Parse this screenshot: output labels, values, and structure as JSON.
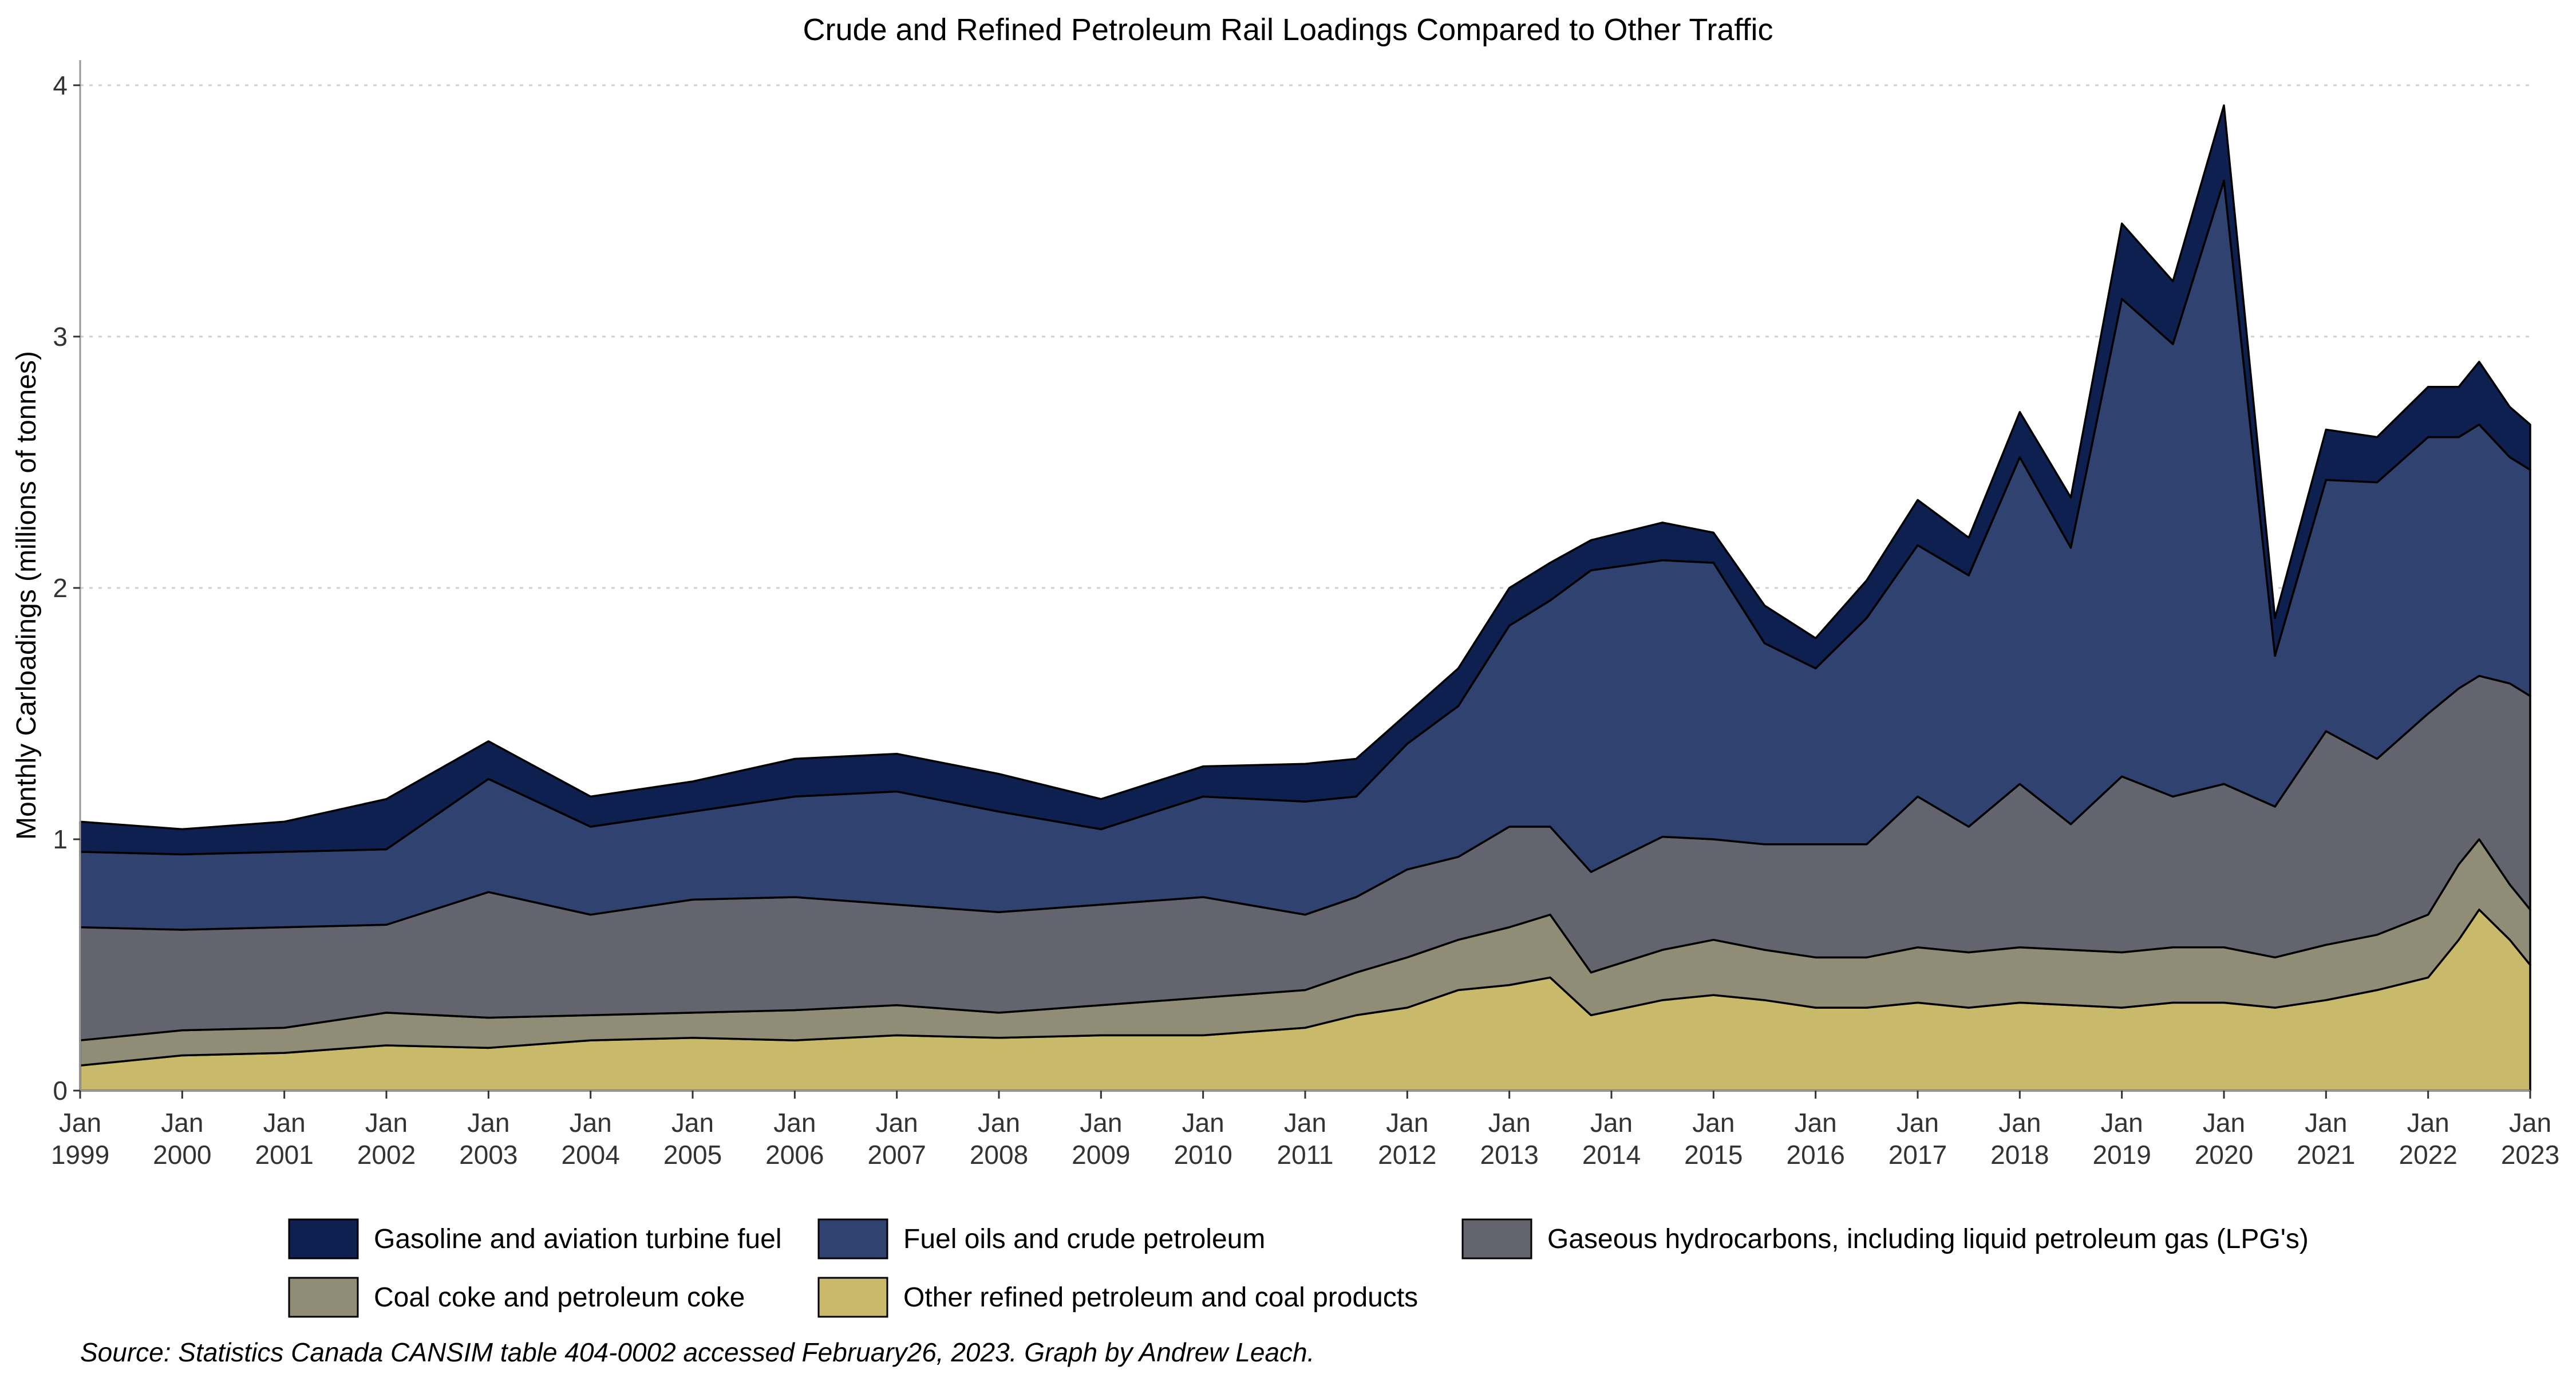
{
  "chart_data": {
    "type": "area",
    "stacked": true,
    "title": "Crude and Refined Petroleum Rail Loadings Compared to Other Traffic",
    "xlabel": "",
    "ylabel": "Monthly Carloadings (millions of tonnes)",
    "ylim": [
      0,
      4.1
    ],
    "yticks": [
      0,
      1,
      2,
      3,
      4
    ],
    "grid": "horizontal-dotted",
    "legend_position": "bottom",
    "x_ticks": [
      {
        "year": 1999,
        "label_top": "Jan",
        "label_bottom": "1999"
      },
      {
        "year": 2000,
        "label_top": "Jan",
        "label_bottom": "2000"
      },
      {
        "year": 2001,
        "label_top": "Jan",
        "label_bottom": "2001"
      },
      {
        "year": 2002,
        "label_top": "Jan",
        "label_bottom": "2002"
      },
      {
        "year": 2003,
        "label_top": "Jan",
        "label_bottom": "2003"
      },
      {
        "year": 2004,
        "label_top": "Jan",
        "label_bottom": "2004"
      },
      {
        "year": 2005,
        "label_top": "Jan",
        "label_bottom": "2005"
      },
      {
        "year": 2006,
        "label_top": "Jan",
        "label_bottom": "2006"
      },
      {
        "year": 2007,
        "label_top": "Jan",
        "label_bottom": "2007"
      },
      {
        "year": 2008,
        "label_top": "Jan",
        "label_bottom": "2008"
      },
      {
        "year": 2009,
        "label_top": "Jan",
        "label_bottom": "2009"
      },
      {
        "year": 2010,
        "label_top": "Jan",
        "label_bottom": "2010"
      },
      {
        "year": 2011,
        "label_top": "Jan",
        "label_bottom": "2011"
      },
      {
        "year": 2012,
        "label_top": "Jan",
        "label_bottom": "2012"
      },
      {
        "year": 2013,
        "label_top": "Jan",
        "label_bottom": "2013"
      },
      {
        "year": 2014,
        "label_top": "Jan",
        "label_bottom": "2014"
      },
      {
        "year": 2015,
        "label_top": "Jan",
        "label_bottom": "2015"
      },
      {
        "year": 2016,
        "label_top": "Jan",
        "label_bottom": "2016"
      },
      {
        "year": 2017,
        "label_top": "Jan",
        "label_bottom": "2017"
      },
      {
        "year": 2018,
        "label_top": "Jan",
        "label_bottom": "2018"
      },
      {
        "year": 2019,
        "label_top": "Jan",
        "label_bottom": "2019"
      },
      {
        "year": 2020,
        "label_top": "Jan",
        "label_bottom": "2020"
      },
      {
        "year": 2021,
        "label_top": "Jan",
        "label_bottom": "2021"
      },
      {
        "year": 2022,
        "label_top": "Jan",
        "label_bottom": "2022"
      },
      {
        "year": 2023,
        "label_top": "Jan",
        "label_bottom": "2023"
      }
    ],
    "xlim": [
      1999.0,
      2023.0
    ],
    "series": [
      {
        "name": "Other refined petroleum and coal products",
        "color": "#c9b96a",
        "x": [
          1999.0,
          2000.0,
          2001.0,
          2002.0,
          2003.0,
          2004.0,
          2005.0,
          2006.0,
          2007.0,
          2008.0,
          2009.0,
          2010.0,
          2011.0,
          2011.5,
          2012.0,
          2012.5,
          2013.0,
          2013.4,
          2013.8,
          2014.5,
          2015.0,
          2015.5,
          2016.0,
          2016.5,
          2017.0,
          2017.5,
          2018.0,
          2018.5,
          2019.0,
          2019.5,
          2020.0,
          2020.5,
          2021.0,
          2021.5,
          2022.0,
          2022.3,
          2022.5,
          2022.8,
          2023.0
        ],
        "y": [
          0.1,
          0.14,
          0.15,
          0.18,
          0.17,
          0.2,
          0.21,
          0.2,
          0.22,
          0.21,
          0.22,
          0.22,
          0.25,
          0.3,
          0.33,
          0.4,
          0.42,
          0.45,
          0.3,
          0.36,
          0.38,
          0.36,
          0.33,
          0.33,
          0.35,
          0.33,
          0.35,
          0.34,
          0.33,
          0.35,
          0.35,
          0.33,
          0.36,
          0.4,
          0.45,
          0.6,
          0.72,
          0.6,
          0.5
        ]
      },
      {
        "name": "Coal coke and petroleum coke",
        "color": "#918c76",
        "x": [
          1999.0,
          2000.0,
          2001.0,
          2002.0,
          2003.0,
          2004.0,
          2005.0,
          2006.0,
          2007.0,
          2008.0,
          2009.0,
          2010.0,
          2011.0,
          2011.5,
          2012.0,
          2012.5,
          2013.0,
          2013.4,
          2013.8,
          2014.5,
          2015.0,
          2015.5,
          2016.0,
          2016.5,
          2017.0,
          2017.5,
          2018.0,
          2018.5,
          2019.0,
          2019.5,
          2020.0,
          2020.5,
          2021.0,
          2021.5,
          2022.0,
          2022.3,
          2022.5,
          2022.8,
          2023.0
        ],
        "y": [
          0.1,
          0.1,
          0.1,
          0.13,
          0.12,
          0.1,
          0.1,
          0.12,
          0.12,
          0.1,
          0.12,
          0.15,
          0.15,
          0.17,
          0.2,
          0.2,
          0.23,
          0.25,
          0.17,
          0.2,
          0.22,
          0.2,
          0.2,
          0.2,
          0.22,
          0.22,
          0.22,
          0.22,
          0.22,
          0.22,
          0.22,
          0.2,
          0.22,
          0.22,
          0.25,
          0.3,
          0.28,
          0.22,
          0.22
        ]
      },
      {
        "name": "Gaseous hydrocarbons, including liquid petroleum gas (LPG's)",
        "color": "#63646e",
        "x": [
          1999.0,
          2000.0,
          2001.0,
          2002.0,
          2003.0,
          2004.0,
          2005.0,
          2006.0,
          2007.0,
          2008.0,
          2009.0,
          2010.0,
          2011.0,
          2011.5,
          2012.0,
          2012.5,
          2013.0,
          2013.4,
          2013.8,
          2014.5,
          2015.0,
          2015.5,
          2016.0,
          2016.5,
          2017.0,
          2017.5,
          2018.0,
          2018.5,
          2019.0,
          2019.5,
          2020.0,
          2020.5,
          2021.0,
          2021.5,
          2022.0,
          2022.3,
          2022.5,
          2022.8,
          2023.0
        ],
        "y": [
          0.45,
          0.4,
          0.4,
          0.35,
          0.5,
          0.4,
          0.45,
          0.45,
          0.4,
          0.4,
          0.4,
          0.4,
          0.3,
          0.3,
          0.35,
          0.33,
          0.4,
          0.35,
          0.4,
          0.45,
          0.4,
          0.42,
          0.45,
          0.45,
          0.6,
          0.5,
          0.65,
          0.5,
          0.7,
          0.6,
          0.65,
          0.6,
          0.85,
          0.7,
          0.8,
          0.7,
          0.65,
          0.8,
          0.85
        ]
      },
      {
        "name": "Fuel oils and crude petroleum",
        "color": "#2f4270",
        "x": [
          1999.0,
          2000.0,
          2001.0,
          2002.0,
          2003.0,
          2004.0,
          2005.0,
          2006.0,
          2007.0,
          2008.0,
          2009.0,
          2010.0,
          2011.0,
          2011.5,
          2012.0,
          2012.5,
          2013.0,
          2013.4,
          2013.8,
          2014.5,
          2015.0,
          2015.5,
          2016.0,
          2016.5,
          2017.0,
          2017.5,
          2018.0,
          2018.5,
          2019.0,
          2019.5,
          2020.0,
          2020.5,
          2021.0,
          2021.5,
          2022.0,
          2022.3,
          2022.5,
          2022.8,
          2023.0
        ],
        "y": [
          0.3,
          0.3,
          0.3,
          0.3,
          0.45,
          0.35,
          0.35,
          0.4,
          0.45,
          0.4,
          0.3,
          0.4,
          0.45,
          0.4,
          0.5,
          0.6,
          0.8,
          0.9,
          1.2,
          1.1,
          1.1,
          0.8,
          0.7,
          0.9,
          1.0,
          1.0,
          1.3,
          1.1,
          1.9,
          1.8,
          2.4,
          0.6,
          1.0,
          1.1,
          1.1,
          1.0,
          1.0,
          0.9,
          0.9
        ]
      },
      {
        "name": "Gasoline and aviation turbine fuel",
        "color": "#0e204f",
        "x": [
          1999.0,
          2000.0,
          2001.0,
          2002.0,
          2003.0,
          2004.0,
          2005.0,
          2006.0,
          2007.0,
          2008.0,
          2009.0,
          2010.0,
          2011.0,
          2011.5,
          2012.0,
          2012.5,
          2013.0,
          2013.4,
          2013.8,
          2014.5,
          2015.0,
          2015.5,
          2016.0,
          2016.5,
          2017.0,
          2017.5,
          2018.0,
          2018.5,
          2019.0,
          2019.5,
          2020.0,
          2020.5,
          2021.0,
          2021.5,
          2022.0,
          2022.3,
          2022.5,
          2022.8,
          2023.0
        ],
        "y": [
          0.12,
          0.1,
          0.12,
          0.2,
          0.15,
          0.12,
          0.12,
          0.15,
          0.15,
          0.15,
          0.12,
          0.12,
          0.15,
          0.15,
          0.12,
          0.15,
          0.15,
          0.15,
          0.12,
          0.15,
          0.12,
          0.15,
          0.12,
          0.15,
          0.18,
          0.15,
          0.18,
          0.2,
          0.3,
          0.25,
          0.3,
          0.15,
          0.2,
          0.18,
          0.2,
          0.2,
          0.25,
          0.2,
          0.18
        ]
      }
    ],
    "legend_order": [
      "Gasoline and aviation turbine fuel",
      "Fuel oils and crude petroleum",
      "Gaseous hydrocarbons, including liquid petroleum gas (LPG's)",
      "Coal coke and petroleum coke",
      "Other refined petroleum and coal products"
    ]
  },
  "source": "Source: Statistics Canada CANSIM table 404-0002 accessed February26, 2023. Graph by Andrew Leach."
}
